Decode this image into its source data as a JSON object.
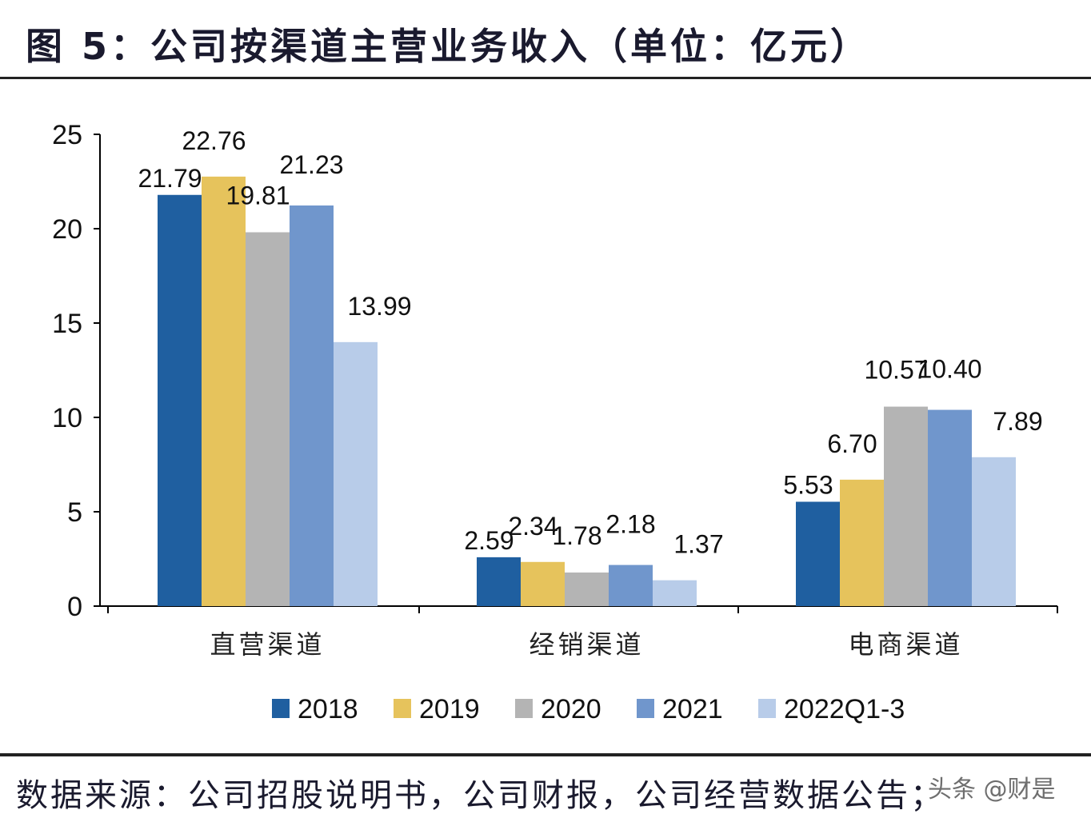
{
  "title": "图 5：公司按渠道主营业务收入（单位：亿元）",
  "footer": "数据来源：公司招股说明书，公司财报，公司经营数据公告；",
  "watermark": "头条 @财是",
  "chart_data": {
    "type": "bar",
    "title": "",
    "xlabel": "",
    "ylabel": "",
    "ylim": [
      0,
      25
    ],
    "yticks": [
      0,
      5,
      10,
      15,
      20,
      25
    ],
    "grid": false,
    "legend": "bottom",
    "categories": [
      "直营渠道",
      "经销渠道",
      "电商渠道"
    ],
    "series": [
      {
        "name": "2018",
        "color": "#1f5fa0",
        "values": [
          21.79,
          2.59,
          5.53
        ],
        "labels": [
          "21.79",
          "2.59",
          "5.53"
        ]
      },
      {
        "name": "2019",
        "color": "#e6c35c",
        "values": [
          22.76,
          2.34,
          6.7
        ],
        "labels": [
          "22.76",
          "2.34",
          "6.70"
        ]
      },
      {
        "name": "2020",
        "color": "#b4b4b4",
        "values": [
          19.81,
          1.78,
          10.57
        ],
        "labels": [
          "19.81",
          "1.78",
          "10.57"
        ]
      },
      {
        "name": "2021",
        "color": "#7096cc",
        "values": [
          21.23,
          2.18,
          10.4
        ],
        "labels": [
          "21.23",
          "2.18",
          "10.40"
        ]
      },
      {
        "name": "2022Q1-3",
        "color": "#b8cce9",
        "values": [
          13.99,
          1.37,
          7.89
        ],
        "labels": [
          "13.99",
          "1.37",
          "7.89"
        ]
      }
    ]
  }
}
